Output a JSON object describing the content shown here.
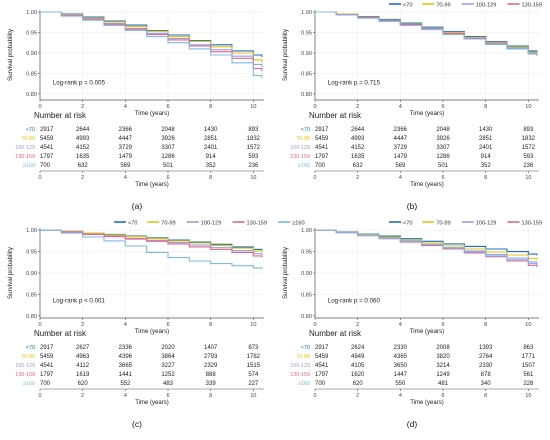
{
  "legend_colors": [
    "#1f6fb8",
    "#e4c21a",
    "#9b9ed8",
    "#e2668e",
    "#7fb8e6"
  ],
  "chart_data": [
    {
      "type": "line",
      "panel_label": "(a)",
      "ylabel": "Survival probability",
      "xlabel": "Time (years)",
      "xlim": [
        0,
        10.5
      ],
      "ylim": [
        0.785,
        1.005
      ],
      "xticks": [
        0,
        2,
        4,
        6,
        8,
        10
      ],
      "yticks": [
        0.8,
        0.85,
        0.9,
        0.95,
        1.0
      ],
      "ytick_labels": [
        "0.80",
        "0.85",
        "0.90",
        "0.95",
        "1.00"
      ],
      "legend": null,
      "annotation": "Log-rank p = 0.005",
      "x": [
        0,
        1,
        2,
        3,
        4,
        5,
        6,
        7,
        8,
        9,
        10,
        10.4
      ],
      "series": [
        {
          "name": "<70",
          "values": [
            1.0,
            0.995,
            0.988,
            0.978,
            0.968,
            0.955,
            0.944,
            0.93,
            0.92,
            0.905,
            0.895,
            0.89
          ]
        },
        {
          "name": "70-99",
          "values": [
            1.0,
            0.994,
            0.985,
            0.976,
            0.965,
            0.953,
            0.94,
            0.928,
            0.915,
            0.9,
            0.883,
            0.876
          ]
        },
        {
          "name": "100-129",
          "values": [
            1.0,
            0.993,
            0.983,
            0.972,
            0.96,
            0.948,
            0.935,
            0.92,
            0.908,
            0.892,
            0.872,
            0.865
          ]
        },
        {
          "name": "130-159",
          "values": [
            1.0,
            0.992,
            0.982,
            0.97,
            0.958,
            0.945,
            0.932,
            0.917,
            0.903,
            0.887,
            0.862,
            0.855
          ]
        },
        {
          "name": "≥160",
          "values": [
            1.0,
            0.99,
            0.98,
            0.967,
            0.955,
            0.94,
            0.925,
            0.91,
            0.895,
            0.876,
            0.845,
            0.838
          ]
        }
      ],
      "risk_table": {
        "title": "Number at risk",
        "groups": [
          "<70",
          "70-99",
          "100-129",
          "130-159",
          "≥160"
        ],
        "rows": [
          [
            "2917",
            "2644",
            "2366",
            "2048",
            "1430",
            "893"
          ],
          [
            "5459",
            "4993",
            "4447",
            "3926",
            "2851",
            "1832"
          ],
          [
            "4541",
            "4152",
            "3729",
            "3307",
            "2401",
            "1572"
          ],
          [
            "1797",
            "1635",
            "1479",
            "1286",
            "914",
            "593"
          ],
          [
            "700",
            "632",
            "569",
            "501",
            "352",
            "236"
          ]
        ]
      }
    },
    {
      "type": "line",
      "panel_label": "(b)",
      "ylabel": "Survival probability",
      "xlabel": "Time (years)",
      "xlim": [
        0,
        10.5
      ],
      "ylim": [
        0.785,
        1.005
      ],
      "xticks": [
        0,
        2,
        4,
        6,
        8,
        10
      ],
      "yticks": [
        0.8,
        0.85,
        0.9,
        0.95,
        1.0
      ],
      "ytick_labels": [
        "0.80",
        "0.85",
        "0.90",
        "0.95",
        "1.00"
      ],
      "legend": [
        "<70",
        "70-99",
        "100-129",
        "130-159",
        "≥160"
      ],
      "annotation": "Log-rank p = 0.715",
      "x": [
        0,
        1,
        2,
        3,
        4,
        5,
        6,
        7,
        8,
        9,
        10,
        10.4
      ],
      "series": [
        {
          "name": "<70",
          "values": [
            1.0,
            0.995,
            0.989,
            0.982,
            0.973,
            0.963,
            0.952,
            0.94,
            0.928,
            0.917,
            0.905,
            0.9
          ]
        },
        {
          "name": "70-99",
          "values": [
            1.0,
            0.995,
            0.988,
            0.98,
            0.971,
            0.961,
            0.95,
            0.938,
            0.926,
            0.914,
            0.902,
            0.897
          ]
        },
        {
          "name": "100-129",
          "values": [
            1.0,
            0.994,
            0.987,
            0.979,
            0.97,
            0.96,
            0.948,
            0.936,
            0.924,
            0.912,
            0.9,
            0.895
          ]
        },
        {
          "name": "130-159",
          "values": [
            1.0,
            0.994,
            0.987,
            0.978,
            0.969,
            0.958,
            0.947,
            0.935,
            0.922,
            0.91,
            0.898,
            0.893
          ]
        },
        {
          "name": "≥160",
          "values": [
            1.0,
            0.993,
            0.985,
            0.977,
            0.967,
            0.957,
            0.945,
            0.934,
            0.921,
            0.91,
            0.898,
            0.894
          ]
        }
      ],
      "risk_table": {
        "title": "Number at risk",
        "groups": [
          "<70",
          "70-99",
          "100-129",
          "130-159",
          "≥160"
        ],
        "rows": [
          [
            "2917",
            "2644",
            "2366",
            "2048",
            "1430",
            "893"
          ],
          [
            "5459",
            "4993",
            "4447",
            "3926",
            "2851",
            "1832"
          ],
          [
            "4541",
            "4152",
            "3729",
            "3307",
            "2401",
            "1572"
          ],
          [
            "1797",
            "1635",
            "1479",
            "1286",
            "914",
            "593"
          ],
          [
            "700",
            "632",
            "569",
            "501",
            "352",
            "236"
          ]
        ]
      }
    },
    {
      "type": "line",
      "panel_label": "(c)",
      "ylabel": "Survival probability",
      "xlabel": "Time (years)",
      "xlim": [
        0,
        10.5
      ],
      "ylim": [
        0.795,
        1.005
      ],
      "xticks": [
        0,
        2,
        4,
        6,
        8,
        10
      ],
      "yticks": [
        0.8,
        0.85,
        0.9,
        0.95,
        1.0
      ],
      "ytick_labels": [
        "0.80",
        "0.85",
        "0.90",
        "0.95",
        "1.00"
      ],
      "legend": [
        "<70",
        "70-99",
        "100-129",
        "130-159",
        "≥160"
      ],
      "annotation": "Log-rank p < 0.001",
      "x": [
        0,
        1,
        2,
        3,
        4,
        5,
        6,
        7,
        8,
        9,
        10,
        10.4
      ],
      "series": [
        {
          "name": "<70",
          "values": [
            1.0,
            0.997,
            0.993,
            0.99,
            0.986,
            0.982,
            0.977,
            0.972,
            0.967,
            0.961,
            0.955,
            0.953
          ]
        },
        {
          "name": "70-99",
          "values": [
            1.0,
            0.997,
            0.993,
            0.989,
            0.985,
            0.98,
            0.975,
            0.97,
            0.964,
            0.958,
            0.951,
            0.949
          ]
        },
        {
          "name": "100-129",
          "values": [
            1.0,
            0.996,
            0.991,
            0.986,
            0.981,
            0.976,
            0.971,
            0.965,
            0.959,
            0.952,
            0.945,
            0.942
          ]
        },
        {
          "name": "130-159",
          "values": [
            1.0,
            0.996,
            0.99,
            0.985,
            0.979,
            0.974,
            0.968,
            0.961,
            0.955,
            0.948,
            0.94,
            0.937
          ]
        },
        {
          "name": "≥160",
          "values": [
            1.0,
            0.993,
            0.984,
            0.975,
            0.963,
            0.948,
            0.936,
            0.928,
            0.922,
            0.917,
            0.912,
            0.91
          ]
        }
      ],
      "risk_table": {
        "title": "Number at risk",
        "groups": [
          "<70",
          "70-99",
          "100-129",
          "130-159",
          "≥160"
        ],
        "rows": [
          [
            "2917",
            "2627",
            "2336",
            "2020",
            "1407",
            "873"
          ],
          [
            "5459",
            "4963",
            "4396",
            "3864",
            "2793",
            "1782"
          ],
          [
            "4541",
            "4112",
            "3665",
            "3227",
            "2329",
            "1515"
          ],
          [
            "1797",
            "1619",
            "1441",
            "1252",
            "888",
            "574"
          ],
          [
            "700",
            "620",
            "552",
            "483",
            "339",
            "227"
          ]
        ]
      }
    },
    {
      "type": "line",
      "panel_label": "(d)",
      "ylabel": "Survival probability",
      "xlabel": "Time (years)",
      "xlim": [
        0,
        10.5
      ],
      "ylim": [
        0.795,
        1.005
      ],
      "xticks": [
        0,
        2,
        4,
        6,
        8,
        10
      ],
      "yticks": [
        0.8,
        0.85,
        0.9,
        0.95,
        1.0
      ],
      "ytick_labels": [
        "0.80",
        "0.85",
        "0.90",
        "0.95",
        "1.00"
      ],
      "legend": [
        "<70",
        "70-99",
        "100-129",
        "130-159",
        "≥160"
      ],
      "annotation": "Log-rank p = 0.060",
      "x": [
        0,
        1,
        2,
        3,
        4,
        5,
        6,
        7,
        8,
        9,
        10,
        10.4
      ],
      "series": [
        {
          "name": "<70",
          "values": [
            1.0,
            0.996,
            0.991,
            0.986,
            0.98,
            0.974,
            0.968,
            0.962,
            0.956,
            0.95,
            0.944,
            0.941
          ]
        },
        {
          "name": "70-99",
          "values": [
            1.0,
            0.995,
            0.99,
            0.984,
            0.977,
            0.97,
            0.963,
            0.956,
            0.949,
            0.942,
            0.934,
            0.931
          ]
        },
        {
          "name": "100-129",
          "values": [
            1.0,
            0.995,
            0.989,
            0.982,
            0.975,
            0.967,
            0.959,
            0.951,
            0.943,
            0.935,
            0.926,
            0.922
          ]
        },
        {
          "name": "130-159",
          "values": [
            1.0,
            0.994,
            0.987,
            0.98,
            0.972,
            0.964,
            0.956,
            0.947,
            0.938,
            0.928,
            0.918,
            0.914
          ]
        },
        {
          "name": "≥160",
          "values": [
            1.0,
            0.994,
            0.988,
            0.981,
            0.974,
            0.966,
            0.958,
            0.949,
            0.94,
            0.931,
            0.922,
            0.918
          ]
        }
      ],
      "risk_table": {
        "title": "Number at risk",
        "groups": [
          "<70",
          "70-99",
          "100-129",
          "130-159",
          "≥160"
        ],
        "rows": [
          [
            "2917",
            "2624",
            "2330",
            "2008",
            "1393",
            "863"
          ],
          [
            "5459",
            "4949",
            "4365",
            "3820",
            "2764",
            "1771"
          ],
          [
            "4541",
            "4105",
            "3650",
            "3214",
            "2330",
            "1507"
          ],
          [
            "1797",
            "1620",
            "1447",
            "1249",
            "878",
            "561"
          ],
          [
            "700",
            "620",
            "550",
            "481",
            "340",
            "228"
          ]
        ]
      }
    }
  ]
}
